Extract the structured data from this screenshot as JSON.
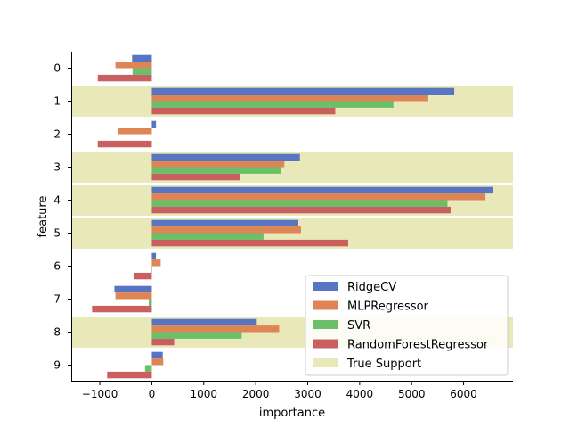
{
  "chart_data": {
    "type": "bar",
    "orientation": "horizontal",
    "xlabel": "importance",
    "ylabel": "feature",
    "categories": [
      "0",
      "1",
      "2",
      "3",
      "4",
      "5",
      "6",
      "7",
      "8",
      "9"
    ],
    "xlim": [
      -1550,
      6950
    ],
    "xticks": [
      {
        "value": -1000,
        "label": "−1000"
      },
      {
        "value": 0,
        "label": "0"
      },
      {
        "value": 1000,
        "label": "1000"
      },
      {
        "value": 2000,
        "label": "2000"
      },
      {
        "value": 3000,
        "label": "3000"
      },
      {
        "value": 4000,
        "label": "4000"
      },
      {
        "value": 5000,
        "label": "5000"
      },
      {
        "value": 6000,
        "label": "6000"
      }
    ],
    "true_support": {
      "name": "True Support",
      "color": "#e8e8b8",
      "features": [
        "1",
        "3",
        "4",
        "5",
        "8"
      ]
    },
    "series": [
      {
        "name": "RidgeCV",
        "color": "#5875c4",
        "values": [
          -380,
          5820,
          80,
          2850,
          6570,
          2820,
          80,
          -720,
          2020,
          210
        ]
      },
      {
        "name": "MLPRegressor",
        "color": "#dd8555",
        "values": [
          -700,
          5320,
          -650,
          2550,
          6420,
          2870,
          170,
          -700,
          2450,
          220
        ]
      },
      {
        "name": "SVR",
        "color": "#6abf69",
        "values": [
          -370,
          4650,
          0,
          2480,
          5690,
          2150,
          10,
          -60,
          1730,
          -130
        ]
      },
      {
        "name": "RandomForestRegressor",
        "color": "#c9605f",
        "values": [
          -1040,
          3530,
          -1040,
          1700,
          5750,
          3780,
          -340,
          -1150,
          430,
          -860
        ]
      }
    ],
    "legend_position": "lower-right",
    "grid": false
  }
}
